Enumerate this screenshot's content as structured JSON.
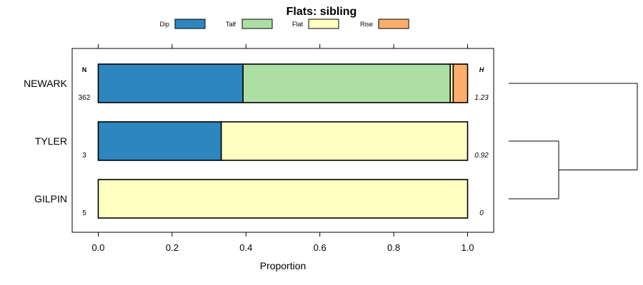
{
  "chart_data": {
    "type": "bar",
    "orientation": "horizontal",
    "stacked": true,
    "title": "Flats: sibling",
    "xlabel": "Proportion",
    "ylabel": "",
    "xlim": [
      -0.07,
      1.07
    ],
    "xticks": [
      0.0,
      0.2,
      0.4,
      0.6,
      0.8,
      1.0
    ],
    "xtick_labels": [
      "0.0",
      "0.2",
      "0.4",
      "0.6",
      "0.8",
      "1.0"
    ],
    "legend": {
      "placement": "top",
      "entries": [
        {
          "label": "Dip",
          "color": "#2e86bf"
        },
        {
          "label": "Talf",
          "color": "#addfa5"
        },
        {
          "label": "Flat",
          "color": "#ffffc0"
        },
        {
          "label": "Rise",
          "color": "#fdae6b"
        }
      ]
    },
    "n_header": "N",
    "h_header": "H",
    "categories": [
      "NEWARK",
      "TYLER",
      "GILPIN"
    ],
    "n_values": [
      "362",
      "3",
      "5"
    ],
    "h_values": [
      "1.23",
      "0.92",
      "0"
    ],
    "series": [
      {
        "name": "Dip",
        "values": [
          0.392,
          0.333,
          0.0
        ]
      },
      {
        "name": "Talf",
        "values": [
          0.561,
          0.0,
          0.0
        ]
      },
      {
        "name": "Flat",
        "values": [
          0.008,
          0.667,
          1.0
        ]
      },
      {
        "name": "Rise",
        "values": [
          0.039,
          0.0,
          0.0
        ]
      }
    ],
    "dendrogram": {
      "description": "TYLER and GILPIN join first, then join with NEWARK",
      "merges": [
        [
          "TYLER",
          "GILPIN"
        ],
        [
          "NEWARK",
          "TYLER+GILPIN"
        ]
      ]
    }
  }
}
